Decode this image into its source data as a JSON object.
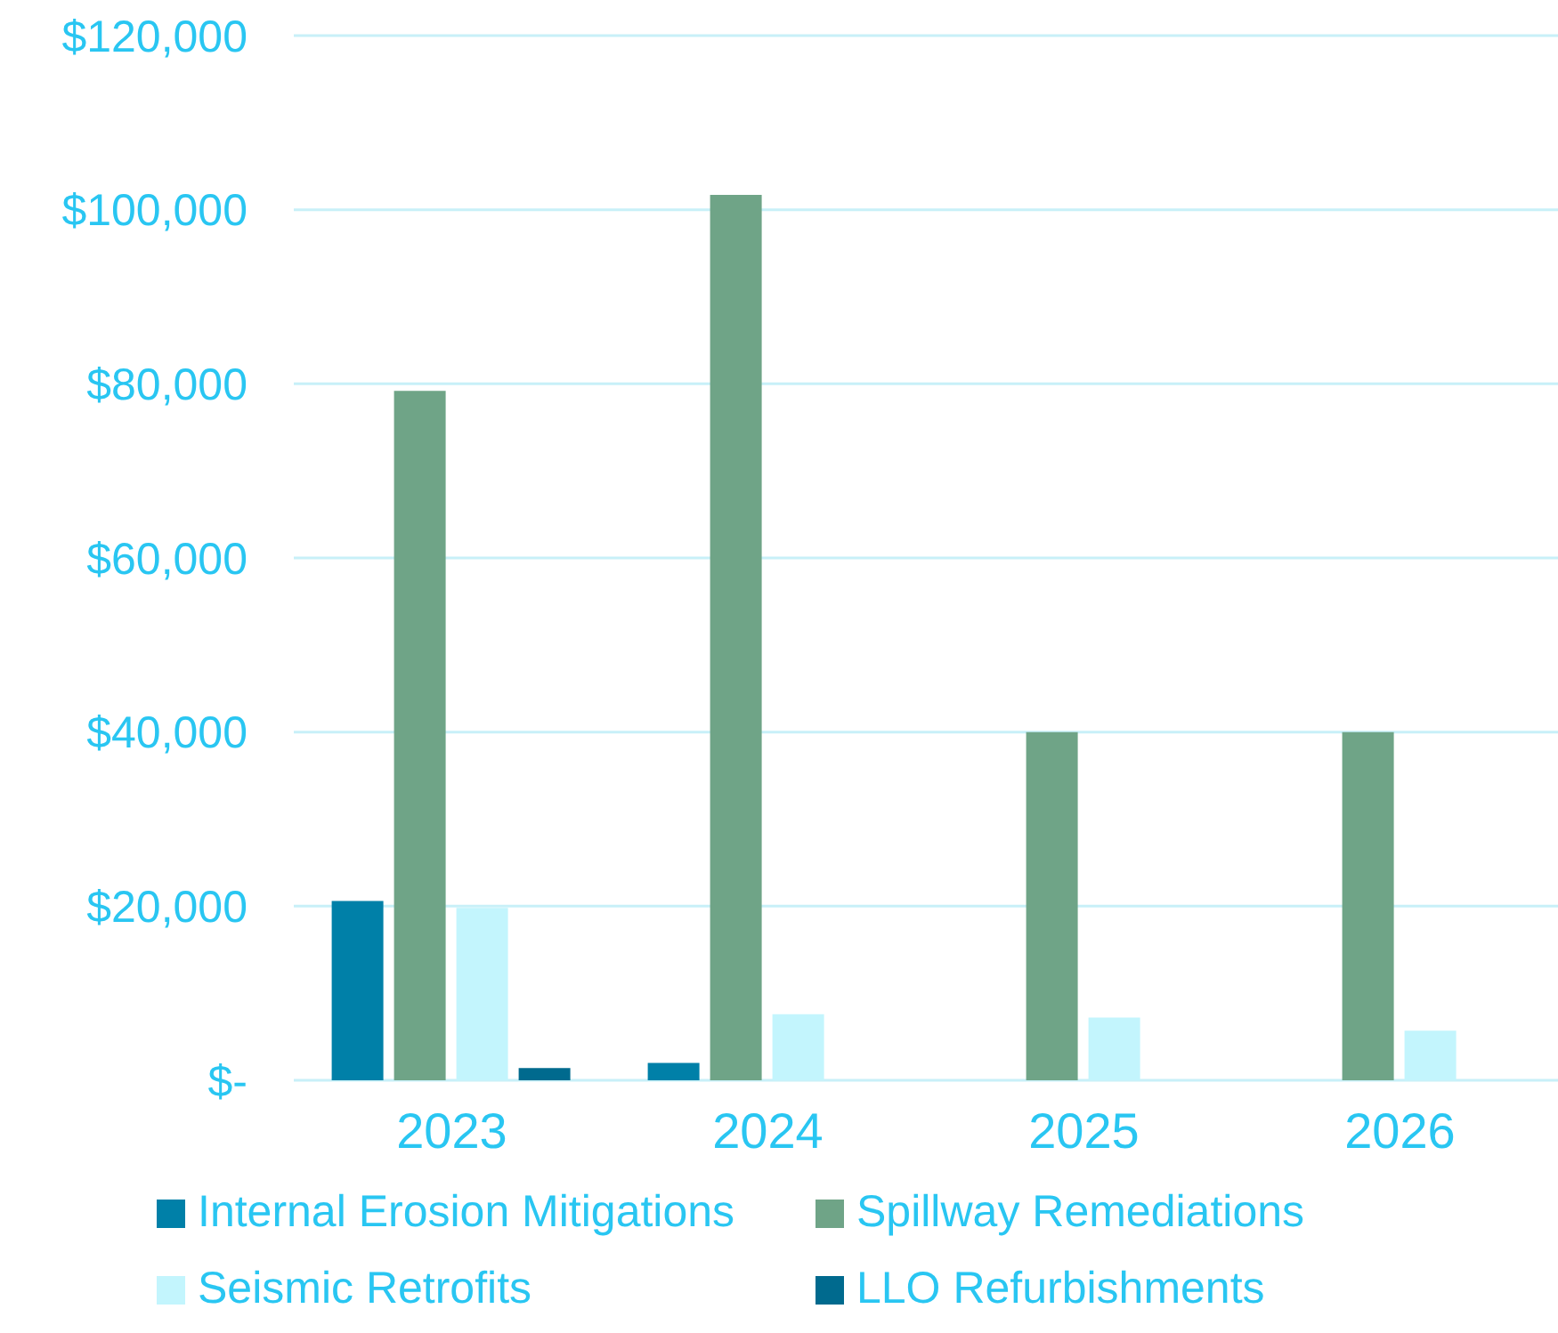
{
  "chart_data": {
    "type": "bar",
    "categories": [
      "2023",
      "2024",
      "2025",
      "2026"
    ],
    "series": [
      {
        "name": "Internal Erosion Mitigations",
        "color": "#0080a8",
        "values": [
          20600,
          2000,
          0,
          0
        ]
      },
      {
        "name": "Spillway Remediations",
        "color": "#6fa487",
        "values": [
          79200,
          101700,
          40000,
          40000
        ]
      },
      {
        "name": "Seismic Retrofits",
        "color": "#c3f5fd",
        "values": [
          19800,
          7600,
          7200,
          5700
        ]
      },
      {
        "name": "LLO Refurbishments",
        "color": "#006a8e",
        "values": [
          1400,
          0,
          0,
          0
        ]
      }
    ],
    "ylim": [
      0,
      120000
    ],
    "yticks": [
      {
        "value": 0,
        "label": "$-"
      },
      {
        "value": 20000,
        "label": "$20,000"
      },
      {
        "value": 40000,
        "label": "$40,000"
      },
      {
        "value": 60000,
        "label": "$60,000"
      },
      {
        "value": 80000,
        "label": "$80,000"
      },
      {
        "value": 100000,
        "label": "$100,000"
      },
      {
        "value": 120000,
        "label": "$120,000"
      }
    ],
    "grid": "y",
    "legend": "bottom"
  }
}
